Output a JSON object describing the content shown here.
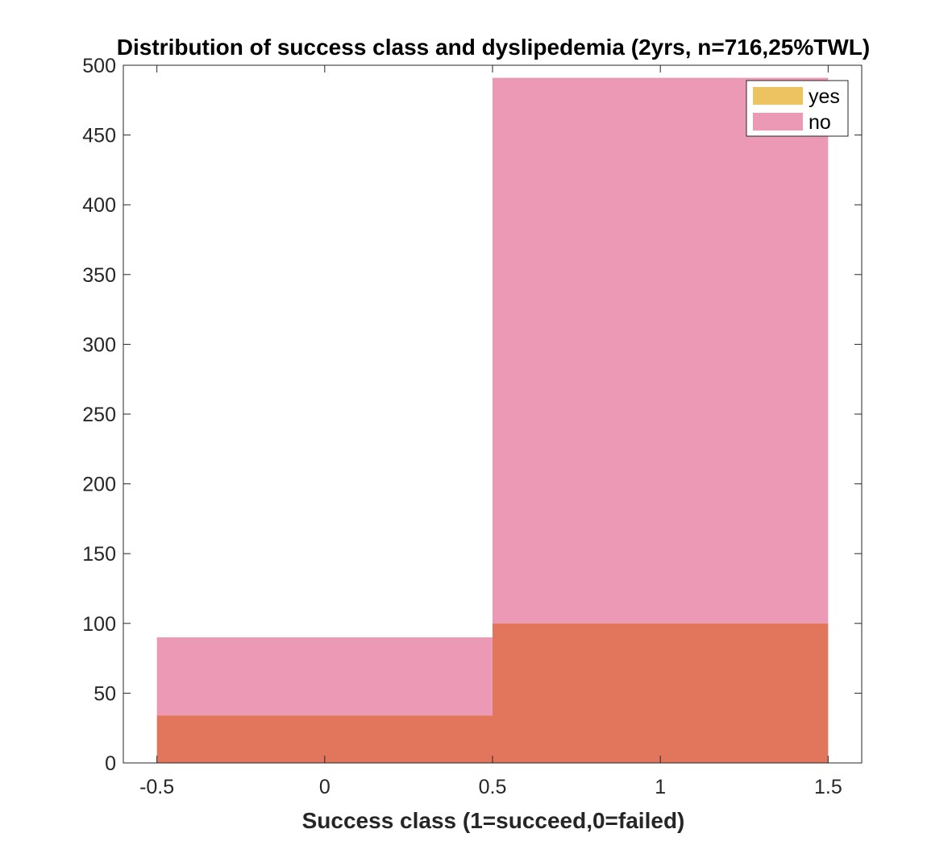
{
  "chart_data": {
    "type": "bar",
    "title": "Distribution of success class and dyslipedemia (2yrs, n=716,25%TWL)",
    "xlabel": "Success class (1=succeed,0=failed)",
    "ylabel": "",
    "xlim": [
      -0.6,
      1.6
    ],
    "ylim": [
      0,
      500
    ],
    "xticks": [
      -0.5,
      0,
      0.5,
      1,
      1.5
    ],
    "xtick_labels": [
      "-0.5",
      "0",
      "0.5",
      "1",
      "1.5"
    ],
    "yticks": [
      0,
      50,
      100,
      150,
      200,
      250,
      300,
      350,
      400,
      450,
      500
    ],
    "ytick_labels": [
      "0",
      "50",
      "100",
      "150",
      "200",
      "250",
      "300",
      "350",
      "400",
      "450",
      "500"
    ],
    "bin_edges": [
      -0.5,
      0.5,
      1.5
    ],
    "categories": [
      "0",
      "1"
    ],
    "grid": false,
    "legend_position": "top-right",
    "overlap_color": "#e1765c",
    "series": [
      {
        "name": "yes",
        "values": [
          34,
          100
        ],
        "color": "#edc362"
      },
      {
        "name": "no",
        "values": [
          90,
          491
        ],
        "color": "#eb99b4"
      }
    ]
  }
}
